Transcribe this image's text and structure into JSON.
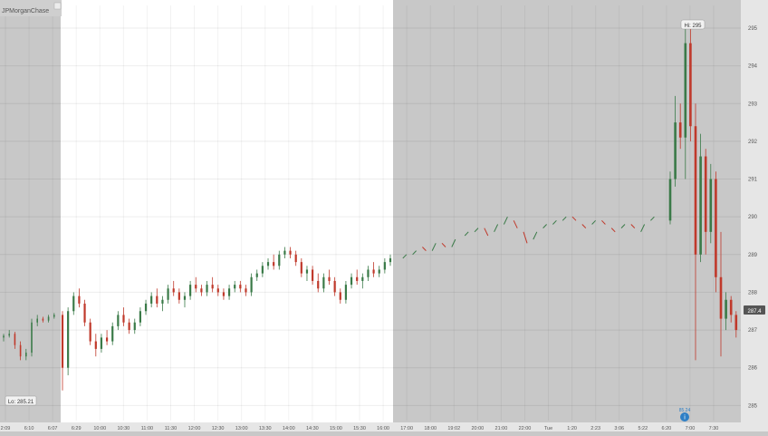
{
  "logo_text": "JPMorganChase",
  "colors": {
    "up": "#3a7a48",
    "down": "#c0392b",
    "regular_session_bg": "#ffffff",
    "extended_session_bg": "#c8c8c8",
    "axis_bg": "#e6e6e6",
    "marker": "#2d7fc6"
  },
  "chart_data": {
    "type": "candlestick",
    "x_tick_labels": [
      "2:09",
      "6:10",
      "6:07",
      "6:29",
      "10:00",
      "10:30",
      "11:00",
      "11:30",
      "12:00",
      "12:30",
      "13:00",
      "13:30",
      "14:00",
      "14:30",
      "15:00",
      "15:30",
      "16:00",
      "17:00",
      "18:00",
      "19:02",
      "20:00",
      "21:00",
      "22:00",
      "Tue",
      "1:20",
      "2:23",
      "3:06",
      "5:22",
      "6:20",
      "7:00",
      "7:30"
    ],
    "y_ticks": [
      285,
      286,
      287,
      288,
      289,
      290,
      291,
      292,
      293,
      294,
      295
    ],
    "ylim": [
      284.6,
      295.6
    ],
    "grid": true,
    "annotations": {
      "high_label": "Hi: 295",
      "low_label": "Lo: 285.21",
      "last_price_label": "287.4",
      "marker_label": "85.24"
    },
    "ohlc": [
      [
        286.8,
        286.9,
        286.7,
        286.85
      ],
      [
        286.85,
        287.0,
        286.8,
        286.9
      ],
      [
        286.9,
        286.95,
        286.5,
        286.6
      ],
      [
        286.6,
        286.7,
        286.2,
        286.3
      ],
      [
        286.3,
        286.5,
        286.2,
        286.4
      ],
      [
        286.4,
        287.3,
        286.3,
        287.2
      ],
      [
        287.2,
        287.4,
        287.1,
        287.3
      ],
      [
        287.3,
        287.35,
        287.2,
        287.25
      ],
      [
        287.25,
        287.4,
        287.2,
        287.35
      ],
      [
        287.35,
        287.45,
        287.3,
        287.4
      ],
      [
        287.4,
        287.5,
        285.4,
        286.0
      ],
      [
        286.0,
        287.6,
        285.8,
        287.5
      ],
      [
        287.5,
        288.0,
        287.4,
        287.9
      ],
      [
        287.9,
        288.1,
        287.6,
        287.7
      ],
      [
        287.7,
        287.8,
        287.1,
        287.2
      ],
      [
        287.2,
        287.3,
        286.6,
        286.7
      ],
      [
        286.7,
        286.9,
        286.3,
        286.5
      ],
      [
        286.5,
        286.9,
        286.4,
        286.8
      ],
      [
        286.8,
        287.0,
        286.6,
        286.7
      ],
      [
        286.7,
        287.2,
        286.6,
        287.1
      ],
      [
        287.1,
        287.5,
        287.0,
        287.4
      ],
      [
        287.4,
        287.6,
        287.1,
        287.2
      ],
      [
        287.2,
        287.3,
        286.9,
        287.0
      ],
      [
        287.0,
        287.3,
        286.9,
        287.2
      ],
      [
        287.2,
        287.6,
        287.1,
        287.5
      ],
      [
        287.5,
        287.8,
        287.4,
        287.7
      ],
      [
        287.7,
        288.0,
        287.6,
        287.9
      ],
      [
        287.9,
        288.1,
        287.6,
        287.7
      ],
      [
        287.7,
        287.9,
        287.5,
        287.8
      ],
      [
        287.8,
        288.2,
        287.7,
        288.1
      ],
      [
        288.1,
        288.3,
        287.9,
        288.0
      ],
      [
        288.0,
        288.1,
        287.7,
        287.8
      ],
      [
        287.8,
        288.0,
        287.6,
        287.9
      ],
      [
        287.9,
        288.3,
        287.8,
        288.2
      ],
      [
        288.2,
        288.4,
        288.0,
        288.1
      ],
      [
        288.1,
        288.2,
        287.9,
        288.0
      ],
      [
        288.0,
        288.3,
        287.9,
        288.2
      ],
      [
        288.2,
        288.4,
        288.0,
        288.1
      ],
      [
        288.1,
        288.2,
        287.9,
        288.0
      ],
      [
        288.0,
        288.1,
        287.8,
        287.9
      ],
      [
        287.9,
        288.2,
        287.8,
        288.1
      ],
      [
        288.1,
        288.3,
        288.0,
        288.2
      ],
      [
        288.2,
        288.3,
        288.0,
        288.1
      ],
      [
        288.1,
        288.2,
        287.9,
        288.0
      ],
      [
        288.0,
        288.5,
        287.9,
        288.4
      ],
      [
        288.4,
        288.6,
        288.3,
        288.5
      ],
      [
        288.5,
        288.8,
        288.4,
        288.7
      ],
      [
        288.7,
        288.9,
        288.6,
        288.8
      ],
      [
        288.8,
        289.0,
        288.6,
        288.7
      ],
      [
        288.7,
        289.1,
        288.6,
        289.0
      ],
      [
        289.0,
        289.2,
        288.9,
        289.1
      ],
      [
        289.1,
        289.2,
        288.9,
        289.0
      ],
      [
        289.0,
        289.1,
        288.7,
        288.8
      ],
      [
        288.8,
        288.9,
        288.4,
        288.5
      ],
      [
        288.5,
        288.7,
        288.3,
        288.6
      ],
      [
        288.6,
        288.7,
        288.2,
        288.3
      ],
      [
        288.3,
        288.5,
        288.0,
        288.1
      ],
      [
        288.1,
        288.5,
        288.0,
        288.4
      ],
      [
        288.4,
        288.6,
        288.2,
        288.3
      ],
      [
        288.3,
        288.4,
        287.9,
        288.0
      ],
      [
        288.0,
        288.1,
        287.7,
        287.8
      ],
      [
        287.8,
        288.3,
        287.7,
        288.2
      ],
      [
        288.2,
        288.5,
        288.1,
        288.4
      ],
      [
        288.4,
        288.6,
        288.2,
        288.3
      ],
      [
        288.3,
        288.5,
        288.1,
        288.4
      ],
      [
        288.4,
        288.7,
        288.3,
        288.6
      ],
      [
        288.6,
        288.8,
        288.4,
        288.5
      ],
      [
        288.5,
        288.7,
        288.4,
        288.6
      ],
      [
        288.6,
        288.9,
        288.5,
        288.8
      ],
      [
        288.8,
        289.0,
        288.7,
        288.9
      ]
    ],
    "extended_ticks": [
      {
        "t": 0.03,
        "o": 288.9,
        "c": 289.0
      },
      {
        "t": 0.06,
        "o": 289.0,
        "c": 289.1
      },
      {
        "t": 0.09,
        "o": 289.2,
        "c": 289.1
      },
      {
        "t": 0.12,
        "o": 289.1,
        "c": 289.3
      },
      {
        "t": 0.15,
        "o": 289.3,
        "c": 289.2
      },
      {
        "t": 0.18,
        "o": 289.2,
        "c": 289.4
      },
      {
        "t": 0.22,
        "o": 289.5,
        "c": 289.6
      },
      {
        "t": 0.25,
        "o": 289.6,
        "c": 289.7
      },
      {
        "t": 0.28,
        "o": 289.7,
        "c": 289.5
      },
      {
        "t": 0.31,
        "o": 289.6,
        "c": 289.8
      },
      {
        "t": 0.34,
        "o": 289.8,
        "c": 290.0
      },
      {
        "t": 0.37,
        "o": 289.9,
        "c": 289.7
      },
      {
        "t": 0.4,
        "o": 289.6,
        "c": 289.3
      },
      {
        "t": 0.43,
        "o": 289.4,
        "c": 289.6
      },
      {
        "t": 0.46,
        "o": 289.7,
        "c": 289.8
      },
      {
        "t": 0.49,
        "o": 289.8,
        "c": 289.9
      },
      {
        "t": 0.52,
        "o": 289.9,
        "c": 290.0
      },
      {
        "t": 0.55,
        "o": 290.0,
        "c": 289.9
      },
      {
        "t": 0.58,
        "o": 289.8,
        "c": 289.7
      },
      {
        "t": 0.61,
        "o": 289.8,
        "c": 289.9
      },
      {
        "t": 0.64,
        "o": 289.9,
        "c": 289.8
      },
      {
        "t": 0.67,
        "o": 289.7,
        "c": 289.6
      },
      {
        "t": 0.7,
        "o": 289.7,
        "c": 289.8
      },
      {
        "t": 0.73,
        "o": 289.8,
        "c": 289.7
      },
      {
        "t": 0.76,
        "o": 289.6,
        "c": 289.8
      },
      {
        "t": 0.79,
        "o": 289.9,
        "c": 290.0
      }
    ],
    "spike_bars": [
      [
        289.9,
        291.2,
        289.8,
        291.0
      ],
      [
        291.0,
        293.2,
        290.8,
        292.5
      ],
      [
        292.5,
        293.0,
        291.8,
        292.1
      ],
      [
        292.1,
        295.0,
        291.0,
        294.6
      ],
      [
        294.6,
        295.0,
        292.0,
        292.4
      ],
      [
        292.4,
        293.0,
        286.2,
        289.0
      ],
      [
        289.0,
        292.2,
        288.8,
        291.6
      ],
      [
        291.6,
        291.8,
        289.0,
        289.6
      ],
      [
        289.6,
        291.4,
        289.3,
        291.0
      ],
      [
        291.0,
        291.2,
        288.0,
        288.4
      ],
      [
        288.4,
        289.6,
        286.3,
        287.3
      ],
      [
        287.3,
        288.0,
        287.0,
        287.8
      ],
      [
        287.8,
        287.9,
        287.2,
        287.4
      ],
      [
        287.4,
        287.5,
        286.8,
        287.0
      ]
    ]
  }
}
